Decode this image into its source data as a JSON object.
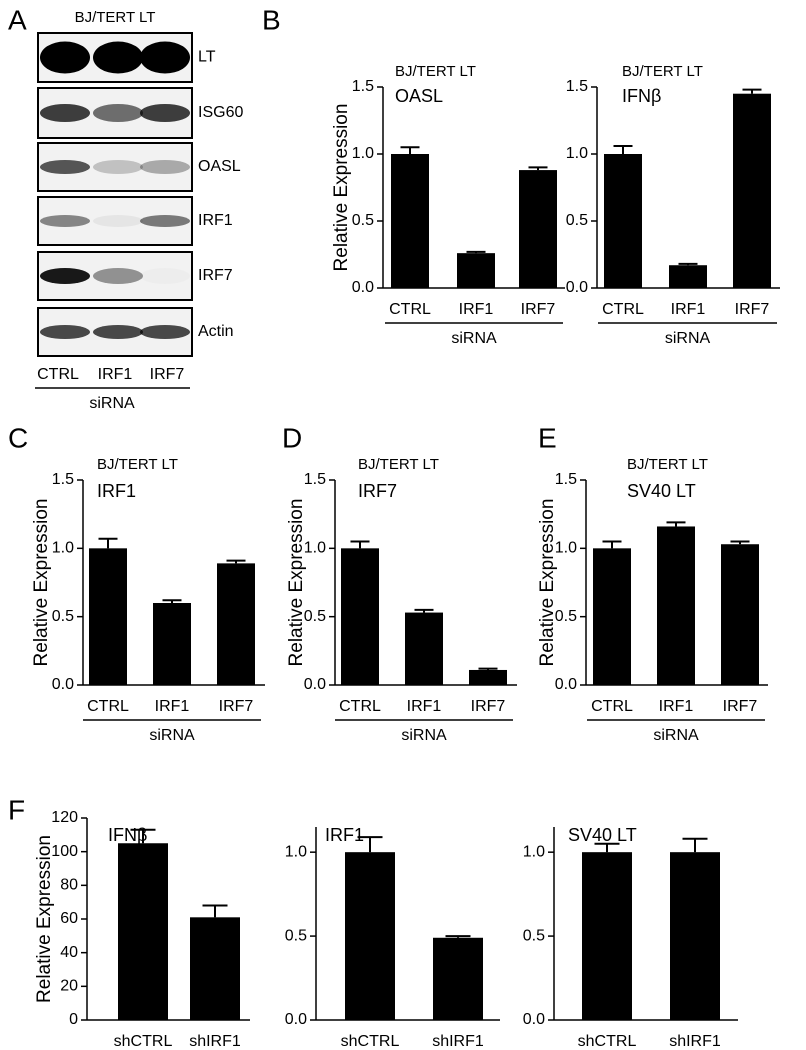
{
  "panel_labels": [
    "A",
    "B",
    "C",
    "D",
    "E",
    "F"
  ],
  "blot": {
    "title": "BJ/TERT LT",
    "rows": [
      "LT",
      "ISG60",
      "OASL",
      "IRF1",
      "IRF7",
      "Actin"
    ],
    "lanes": [
      "CTRL",
      "IRF1",
      "IRF7"
    ],
    "group_label": "siRNA"
  },
  "chart_data": [
    {
      "type": "bar",
      "title": "BJ/TERT LT",
      "subtitle": "OASL",
      "ylabel": "Relative Expression",
      "group_label": "siRNA",
      "color": "#000000",
      "categories": [
        "CTRL",
        "IRF1",
        "IRF7"
      ],
      "values": [
        1.0,
        0.26,
        0.88
      ],
      "errors": [
        0.05,
        0.01,
        0.02
      ],
      "ylim": [
        0,
        1.5
      ],
      "yticks": [
        {
          "value": 0,
          "label": "0.0"
        },
        {
          "value": 0.5,
          "label": "0.5"
        },
        {
          "value": 1,
          "label": "1.0"
        },
        {
          "value": 1.5,
          "label": "1.5"
        }
      ]
    },
    {
      "type": "bar",
      "title": "BJ/TERT LT",
      "subtitle": "IFNβ",
      "group_label": "siRNA",
      "color": "#000000",
      "categories": [
        "CTRL",
        "IRF1",
        "IRF7"
      ],
      "values": [
        1.0,
        0.17,
        1.45
      ],
      "errors": [
        0.06,
        0.01,
        0.03
      ],
      "ylim": [
        0,
        1.5
      ],
      "yticks": [
        {
          "value": 0,
          "label": "0.0"
        },
        {
          "value": 0.5,
          "label": "0.5"
        },
        {
          "value": 1,
          "label": "1.0"
        },
        {
          "value": 1.5,
          "label": "1.5"
        }
      ]
    },
    {
      "type": "bar",
      "title": "BJ/TERT LT",
      "subtitle": "IRF1",
      "ylabel": "Relative Expression",
      "group_label": "siRNA",
      "color": "#000000",
      "categories": [
        "CTRL",
        "IRF1",
        "IRF7"
      ],
      "values": [
        1.0,
        0.6,
        0.89
      ],
      "errors": [
        0.07,
        0.02,
        0.02
      ],
      "ylim": [
        0,
        1.5
      ],
      "yticks": [
        {
          "value": 0,
          "label": "0.0"
        },
        {
          "value": 0.5,
          "label": "0.5"
        },
        {
          "value": 1,
          "label": "1.0"
        },
        {
          "value": 1.5,
          "label": "1.5"
        }
      ]
    },
    {
      "type": "bar",
      "title": "BJ/TERT LT",
      "subtitle": "IRF7",
      "ylabel": "Relative Expression",
      "group_label": "siRNA",
      "color": "#000000",
      "categories": [
        "CTRL",
        "IRF1",
        "IRF7"
      ],
      "values": [
        1.0,
        0.53,
        0.11
      ],
      "errors": [
        0.05,
        0.02,
        0.01
      ],
      "ylim": [
        0,
        1.5
      ],
      "yticks": [
        {
          "value": 0,
          "label": "0.0"
        },
        {
          "value": 0.5,
          "label": "0.5"
        },
        {
          "value": 1,
          "label": "1.0"
        },
        {
          "value": 1.5,
          "label": "1.5"
        }
      ]
    },
    {
      "type": "bar",
      "title": "BJ/TERT LT",
      "subtitle": "SV40 LT",
      "ylabel": "Relative Expression",
      "group_label": "siRNA",
      "color": "#000000",
      "categories": [
        "CTRL",
        "IRF1",
        "IRF7"
      ],
      "values": [
        1.0,
        1.16,
        1.03
      ],
      "errors": [
        0.05,
        0.03,
        0.02
      ],
      "ylim": [
        0,
        1.5
      ],
      "yticks": [
        {
          "value": 0,
          "label": "0.0"
        },
        {
          "value": 0.5,
          "label": "0.5"
        },
        {
          "value": 1,
          "label": "1.0"
        },
        {
          "value": 1.5,
          "label": "1.5"
        }
      ]
    },
    {
      "type": "bar",
      "subtitle": "IFNβ",
      "ylabel": "Relative Expression",
      "color": "#000000",
      "categories": [
        "shCTRL",
        "shIRF1"
      ],
      "values": [
        105,
        61
      ],
      "errors": [
        8,
        7
      ],
      "ylim": [
        0,
        120
      ],
      "yticks": [
        0,
        20,
        40,
        60,
        80,
        100,
        120
      ]
    },
    {
      "type": "bar",
      "subtitle": "IRF1",
      "color": "#000000",
      "categories": [
        "shCTRL",
        "shIRF1"
      ],
      "values": [
        1.0,
        0.49
      ],
      "errors": [
        0.09,
        0.01
      ],
      "ylim": [
        0,
        1.15
      ],
      "yticks": [
        {
          "value": 0,
          "label": "0.0"
        },
        {
          "value": 0.5,
          "label": "0.5"
        },
        {
          "value": 1,
          "label": "1.0"
        }
      ]
    },
    {
      "type": "bar",
      "subtitle": "SV40 LT",
      "color": "#000000",
      "categories": [
        "shCTRL",
        "shIRF1"
      ],
      "values": [
        1.0,
        1.0
      ],
      "errors": [
        0.05,
        0.08
      ],
      "ylim": [
        0,
        1.15
      ],
      "yticks": [
        {
          "value": 0,
          "label": "0.0"
        },
        {
          "value": 0.5,
          "label": "0.5"
        },
        {
          "value": 1,
          "label": "1.0"
        }
      ]
    }
  ]
}
